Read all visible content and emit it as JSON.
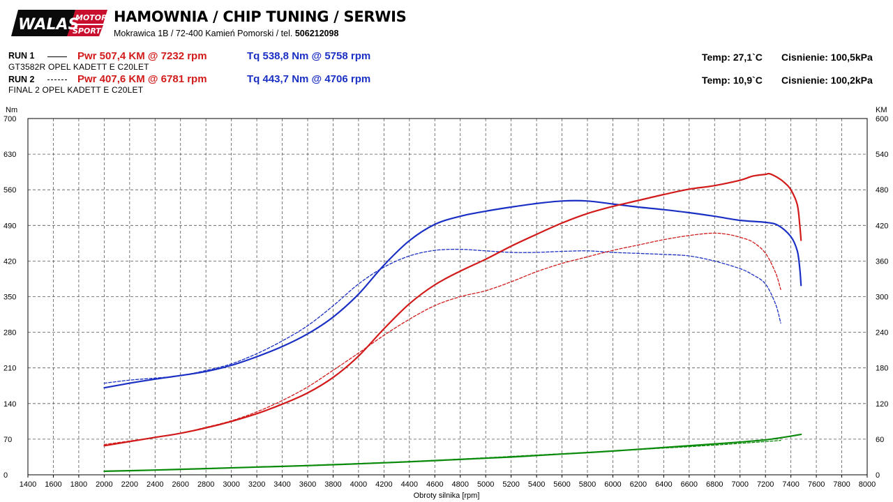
{
  "header": {
    "logo": {
      "word": "WALAS",
      "motor": "MOTOR",
      "sport": "SPORT"
    },
    "company_name": "HAMOWNIA / CHIP TUNING / SERWIS",
    "address": "Mokrawica 1B / 72-400 Kamień Pomorski / tel.",
    "phone": "506212098"
  },
  "runs": [
    {
      "label": "RUN 1",
      "car": "GT3582R OPEL KADETT E C20LET",
      "pwr": "Pwr  507,4 KM @ 7232 rpm",
      "tq": "Tq 538,8 Nm @ 5758 rpm",
      "temp": "Temp: 27,1`C",
      "pressure": "Cisnienie: 100,5kPa"
    },
    {
      "label": "RUN 2",
      "car": "FINAL  2 OPEL KADETT E C20LET",
      "pwr": "Pwr  407,6 KM @ 6781 rpm",
      "tq": "Tq 443,7 Nm @ 4706 rpm",
      "temp": "Temp: 10,9`C",
      "pressure": "Cisnienie: 100,2kPa"
    }
  ],
  "colors": {
    "power": "#d21a1a",
    "torque": "#1a2fc4",
    "loss": "#0a8a0a",
    "grid": "#555555"
  },
  "chart_data": {
    "type": "line",
    "xlabel": "Obroty silnika [rpm]",
    "ylabel_left": "Nm",
    "ylabel_right": "KM",
    "xlim": [
      1400,
      8000
    ],
    "ylim_left": [
      0,
      700
    ],
    "ylim_right": [
      0,
      600
    ],
    "x_ticks": [
      1400,
      1600,
      1800,
      2000,
      2200,
      2400,
      2600,
      2800,
      3000,
      3200,
      3400,
      3600,
      3800,
      4000,
      4200,
      4400,
      4600,
      4800,
      5000,
      5200,
      5400,
      5600,
      5800,
      6000,
      6200,
      6400,
      6600,
      6800,
      7000,
      7200,
      7400,
      7600,
      7800,
      8000
    ],
    "y_ticks_left": [
      0,
      70,
      140,
      210,
      280,
      350,
      420,
      490,
      560,
      630,
      700
    ],
    "y_ticks_right": [
      0,
      60,
      120,
      180,
      240,
      300,
      360,
      420,
      480,
      540,
      600
    ],
    "grid": true,
    "series": [
      {
        "name": "RUN 1 Tq",
        "axis": "left",
        "style": "solid",
        "color": "#1a2fc4",
        "points": [
          [
            2000,
            171
          ],
          [
            2200,
            180
          ],
          [
            2400,
            188
          ],
          [
            2600,
            195
          ],
          [
            2800,
            203
          ],
          [
            3000,
            215
          ],
          [
            3200,
            232
          ],
          [
            3400,
            252
          ],
          [
            3600,
            277
          ],
          [
            3800,
            310
          ],
          [
            4000,
            355
          ],
          [
            4200,
            412
          ],
          [
            4400,
            460
          ],
          [
            4600,
            492
          ],
          [
            4800,
            508
          ],
          [
            5000,
            518
          ],
          [
            5200,
            526
          ],
          [
            5400,
            533
          ],
          [
            5600,
            538
          ],
          [
            5800,
            538
          ],
          [
            6000,
            532
          ],
          [
            6200,
            526
          ],
          [
            6400,
            521
          ],
          [
            6600,
            515
          ],
          [
            6800,
            508
          ],
          [
            7000,
            500
          ],
          [
            7200,
            496
          ],
          [
            7300,
            490
          ],
          [
            7400,
            468
          ],
          [
            7450,
            440
          ],
          [
            7470,
            405
          ],
          [
            7480,
            372
          ]
        ]
      },
      {
        "name": "RUN 2 Tq",
        "axis": "left",
        "style": "dashed",
        "color": "#1a2fc4",
        "points": [
          [
            2000,
            180
          ],
          [
            2200,
            186
          ],
          [
            2400,
            190
          ],
          [
            2600,
            195
          ],
          [
            2800,
            205
          ],
          [
            3000,
            218
          ],
          [
            3200,
            238
          ],
          [
            3400,
            263
          ],
          [
            3600,
            293
          ],
          [
            3800,
            332
          ],
          [
            4000,
            375
          ],
          [
            4200,
            408
          ],
          [
            4400,
            430
          ],
          [
            4600,
            441
          ],
          [
            4800,
            443
          ],
          [
            5000,
            440
          ],
          [
            5200,
            437
          ],
          [
            5400,
            437
          ],
          [
            5600,
            439
          ],
          [
            5800,
            440
          ],
          [
            6000,
            437
          ],
          [
            6200,
            435
          ],
          [
            6400,
            433
          ],
          [
            6600,
            430
          ],
          [
            6800,
            420
          ],
          [
            7000,
            405
          ],
          [
            7100,
            393
          ],
          [
            7200,
            375
          ],
          [
            7280,
            335
          ],
          [
            7320,
            298
          ]
        ]
      },
      {
        "name": "RUN 1 Pwr",
        "axis": "right",
        "style": "solid",
        "color": "#d21a1a",
        "points": [
          [
            2000,
            49
          ],
          [
            2200,
            56
          ],
          [
            2400,
            63
          ],
          [
            2600,
            70
          ],
          [
            2800,
            79
          ],
          [
            3000,
            90
          ],
          [
            3200,
            103
          ],
          [
            3400,
            119
          ],
          [
            3600,
            138
          ],
          [
            3800,
            164
          ],
          [
            4000,
            200
          ],
          [
            4200,
            246
          ],
          [
            4400,
            288
          ],
          [
            4600,
            320
          ],
          [
            4800,
            343
          ],
          [
            5000,
            363
          ],
          [
            5200,
            385
          ],
          [
            5400,
            405
          ],
          [
            5600,
            424
          ],
          [
            5800,
            440
          ],
          [
            6000,
            452
          ],
          [
            6200,
            462
          ],
          [
            6400,
            472
          ],
          [
            6600,
            481
          ],
          [
            6800,
            487
          ],
          [
            7000,
            496
          ],
          [
            7100,
            503
          ],
          [
            7200,
            506
          ],
          [
            7232,
            507
          ],
          [
            7300,
            500
          ],
          [
            7350,
            492
          ],
          [
            7400,
            480
          ],
          [
            7450,
            455
          ],
          [
            7470,
            420
          ],
          [
            7480,
            395
          ]
        ]
      },
      {
        "name": "RUN 2 Pwr",
        "axis": "right",
        "style": "dashed",
        "color": "#d21a1a",
        "points": [
          [
            2000,
            51
          ],
          [
            2200,
            57
          ],
          [
            2400,
            63
          ],
          [
            2600,
            70
          ],
          [
            2800,
            80
          ],
          [
            3000,
            91
          ],
          [
            3200,
            106
          ],
          [
            3400,
            125
          ],
          [
            3600,
            148
          ],
          [
            3800,
            176
          ],
          [
            4000,
            205
          ],
          [
            4200,
            235
          ],
          [
            4400,
            262
          ],
          [
            4600,
            285
          ],
          [
            4800,
            300
          ],
          [
            5000,
            310
          ],
          [
            5200,
            325
          ],
          [
            5400,
            342
          ],
          [
            5600,
            356
          ],
          [
            5800,
            367
          ],
          [
            6000,
            378
          ],
          [
            6200,
            387
          ],
          [
            6400,
            396
          ],
          [
            6600,
            403
          ],
          [
            6781,
            407
          ],
          [
            6900,
            405
          ],
          [
            7000,
            400
          ],
          [
            7100,
            392
          ],
          [
            7200,
            373
          ],
          [
            7280,
            340
          ],
          [
            7320,
            312
          ]
        ]
      },
      {
        "name": "RUN 1 Loss",
        "axis": "right",
        "style": "solid",
        "color": "#0a8a0a",
        "points": [
          [
            2000,
            6
          ],
          [
            2400,
            8
          ],
          [
            2800,
            10.5
          ],
          [
            3200,
            13
          ],
          [
            3600,
            15.5
          ],
          [
            4000,
            18.5
          ],
          [
            4400,
            22
          ],
          [
            4800,
            26
          ],
          [
            5200,
            30
          ],
          [
            5600,
            35
          ],
          [
            6000,
            40
          ],
          [
            6400,
            46
          ],
          [
            6800,
            52
          ],
          [
            7200,
            59
          ],
          [
            7480,
            68
          ]
        ]
      },
      {
        "name": "RUN 2 Loss",
        "axis": "right",
        "style": "dashed",
        "color": "#0a8a0a",
        "points": [
          [
            2000,
            6
          ],
          [
            2400,
            8
          ],
          [
            2800,
            10.5
          ],
          [
            3200,
            13
          ],
          [
            3600,
            16
          ],
          [
            4000,
            19
          ],
          [
            4400,
            22.5
          ],
          [
            4800,
            26.5
          ],
          [
            5200,
            31
          ],
          [
            5600,
            35.5
          ],
          [
            6000,
            40
          ],
          [
            6400,
            45
          ],
          [
            6800,
            50
          ],
          [
            7200,
            56
          ],
          [
            7320,
            58
          ]
        ]
      }
    ]
  }
}
